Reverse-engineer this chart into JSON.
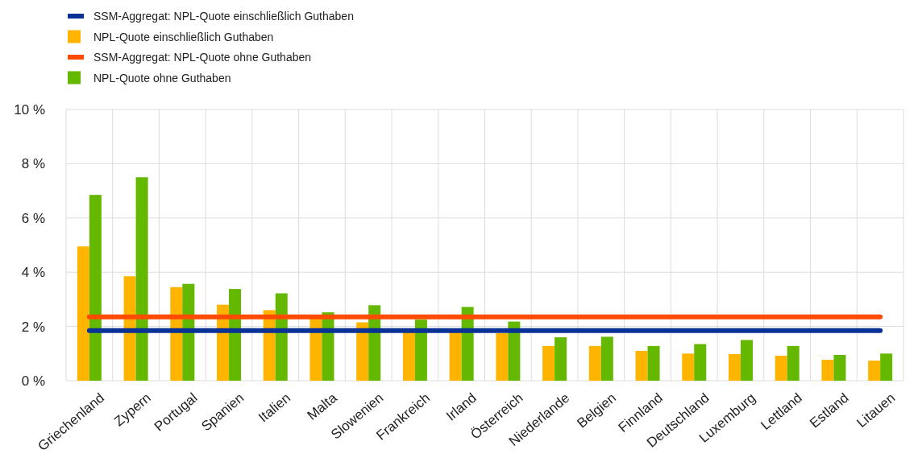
{
  "chart_data": {
    "type": "bar",
    "categories": [
      "Griechenland",
      "Zypern",
      "Portugal",
      "Spanien",
      "Italien",
      "Malta",
      "Slowenien",
      "Frankreich",
      "Irland",
      "Österreich",
      "Niederlande",
      "Belgien",
      "Finnland",
      "Deutschland",
      "Luxemburg",
      "Lettland",
      "Estland",
      "Litauen"
    ],
    "series": [
      {
        "name": "SSM-Aggregat: NPL-Quote einschließlich Guthaben",
        "type": "line",
        "color": "#0a3296",
        "values": [
          1.85,
          1.85,
          1.85,
          1.85,
          1.85,
          1.85,
          1.85,
          1.85,
          1.85,
          1.85,
          1.85,
          1.85,
          1.85,
          1.85,
          1.85,
          1.85,
          1.85,
          1.85
        ]
      },
      {
        "name": "NPL-Quote einschließlich Guthaben",
        "color": "#ffb400",
        "values": [
          4.95,
          3.85,
          3.45,
          2.8,
          2.6,
          2.3,
          2.15,
          1.8,
          1.8,
          1.75,
          1.28,
          1.28,
          1.1,
          1.0,
          0.98,
          0.92,
          0.77,
          0.74
        ]
      },
      {
        "name": "SSM-Aggregat: NPL-Quote ohne Guthaben",
        "type": "line",
        "color": "#ff4b00",
        "values": [
          2.35,
          2.35,
          2.35,
          2.35,
          2.35,
          2.35,
          2.35,
          2.35,
          2.35,
          2.35,
          2.35,
          2.35,
          2.35,
          2.35,
          2.35,
          2.35,
          2.35,
          2.35
        ]
      },
      {
        "name": "NPL-Quote ohne Guthaben",
        "color": "#65b800",
        "values": [
          6.85,
          7.5,
          3.57,
          3.38,
          3.22,
          2.52,
          2.78,
          2.25,
          2.72,
          2.18,
          1.6,
          1.62,
          1.28,
          1.35,
          1.5,
          1.28,
          0.95,
          1.0
        ]
      }
    ],
    "ylim": [
      0,
      10
    ],
    "yticks": [
      {
        "value": 0,
        "label": "0 %"
      },
      {
        "value": 2,
        "label": "2 %"
      },
      {
        "value": 4,
        "label": "4 %"
      },
      {
        "value": 6,
        "label": "6 %"
      },
      {
        "value": 8,
        "label": "8 %"
      },
      {
        "value": 10,
        "label": "10 %"
      }
    ],
    "grid": true,
    "legend": "top left"
  }
}
